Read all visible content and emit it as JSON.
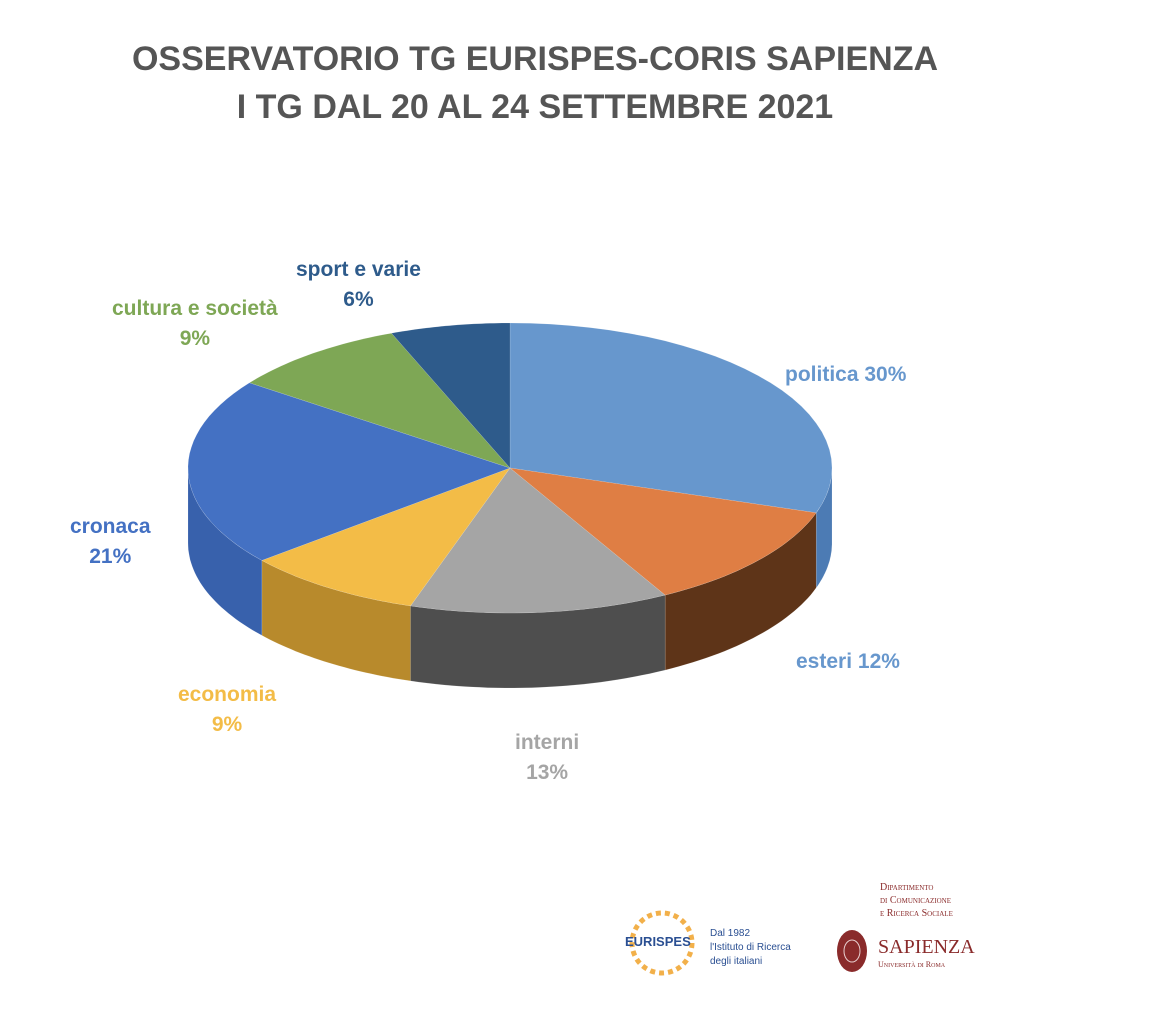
{
  "chart_data": {
    "type": "pie",
    "style": "3d",
    "title": "OSSERVATORIO TG EURISPES-CORIS SAPIENZA",
    "subtitle": "I TG DAL 20 AL 24 SETTEMBRE 2021",
    "slices": [
      {
        "label": "politica",
        "value": 30,
        "pct": "30%",
        "color": "#6797CD",
        "side": "#4C7BB4"
      },
      {
        "label": "esteri",
        "value": 12,
        "pct": "12%",
        "color": "#DF7E44",
        "side": "#5E3418"
      },
      {
        "label": "interni",
        "value": 13,
        "pct": "13%",
        "color": "#A5A5A5",
        "side": "#4E4E4E"
      },
      {
        "label": "economia",
        "value": 9,
        "pct": "9%",
        "color": "#F3BC47",
        "side": "#B88A2C"
      },
      {
        "label": "cronaca",
        "value": 21,
        "pct": "21%",
        "color": "#4471C3",
        "side": "#3861AC"
      },
      {
        "label": "cultura e società",
        "value": 9,
        "pct": "9%",
        "color": "#7EA755",
        "side": "#5C8038"
      },
      {
        "label": "sport e varie",
        "value": 6,
        "pct": "6%",
        "color": "#2E5B8B",
        "side": "#1F3F63"
      }
    ],
    "label_colors": [
      "#6797CD",
      "#6797CD",
      "#A5A5A5",
      "#F3BC47",
      "#4471C3",
      "#7EA755",
      "#2E5B8B"
    ]
  },
  "logos": {
    "eurispes": {
      "name": "EURISPES",
      "line1": "Dal 1982",
      "line2": "l'Istituto di Ricerca",
      "line3": "degli italiani"
    },
    "sapienza": {
      "dept1": "Dipartimento",
      "dept2": "di Comunicazione",
      "dept3": "e Ricerca Sociale",
      "name": "Sapienza",
      "sub": "Università di Roma"
    }
  }
}
